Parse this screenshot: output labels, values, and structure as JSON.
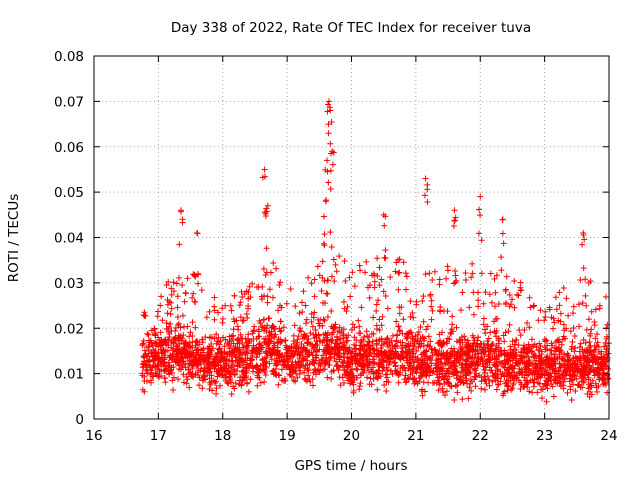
{
  "chart_data": {
    "type": "scatter",
    "title": "Day 338 of 2022, Rate Of TEC Index for receiver tuva",
    "xlabel": "GPS time / hours",
    "ylabel": "ROTI / TECUs",
    "xlim": [
      16,
      24
    ],
    "ylim": [
      0,
      0.08
    ],
    "x_ticks": [
      "16",
      "17",
      "18",
      "19",
      "20",
      "21",
      "22",
      "23",
      "24"
    ],
    "y_ticks": [
      "0",
      "0.01",
      "0.02",
      "0.03",
      "0.04",
      "0.05",
      "0.06",
      "0.07",
      "0.08"
    ],
    "grid": true,
    "marker": "+",
    "colors": {
      "series": "#ff0000",
      "grid": "#a0a0a0",
      "axis": "#000000"
    },
    "series": [
      {
        "name": "ROTI",
        "notable_points": [
          {
            "x": 17.35,
            "y": 0.046
          },
          {
            "x": 17.6,
            "y": 0.041
          },
          {
            "x": 18.65,
            "y": 0.055
          },
          {
            "x": 18.7,
            "y": 0.047
          },
          {
            "x": 19.65,
            "y": 0.07
          },
          {
            "x": 19.67,
            "y": 0.068
          },
          {
            "x": 19.7,
            "y": 0.059
          },
          {
            "x": 19.62,
            "y": 0.057
          },
          {
            "x": 19.6,
            "y": 0.048
          },
          {
            "x": 20.5,
            "y": 0.045
          },
          {
            "x": 21.15,
            "y": 0.053
          },
          {
            "x": 21.6,
            "y": 0.046
          },
          {
            "x": 22.0,
            "y": 0.049
          },
          {
            "x": 22.35,
            "y": 0.044
          },
          {
            "x": 23.6,
            "y": 0.041
          }
        ],
        "profile": [
          {
            "x": 16.75,
            "base": 0.012,
            "spread": 0.012
          },
          {
            "x": 17.0,
            "base": 0.013,
            "spread": 0.013
          },
          {
            "x": 17.3,
            "base": 0.014,
            "spread": 0.022
          },
          {
            "x": 17.6,
            "base": 0.013,
            "spread": 0.02
          },
          {
            "x": 18.0,
            "base": 0.012,
            "spread": 0.014
          },
          {
            "x": 18.4,
            "base": 0.013,
            "spread": 0.016
          },
          {
            "x": 18.7,
            "base": 0.015,
            "spread": 0.024
          },
          {
            "x": 19.0,
            "base": 0.013,
            "spread": 0.015
          },
          {
            "x": 19.4,
            "base": 0.014,
            "spread": 0.02
          },
          {
            "x": 19.7,
            "base": 0.016,
            "spread": 0.026
          },
          {
            "x": 20.0,
            "base": 0.013,
            "spread": 0.02
          },
          {
            "x": 20.5,
            "base": 0.014,
            "spread": 0.024
          },
          {
            "x": 21.0,
            "base": 0.013,
            "spread": 0.02
          },
          {
            "x": 21.5,
            "base": 0.012,
            "spread": 0.022
          },
          {
            "x": 22.0,
            "base": 0.013,
            "spread": 0.022
          },
          {
            "x": 22.5,
            "base": 0.012,
            "spread": 0.02
          },
          {
            "x": 23.0,
            "base": 0.011,
            "spread": 0.014
          },
          {
            "x": 23.5,
            "base": 0.012,
            "spread": 0.02
          },
          {
            "x": 24.0,
            "base": 0.011,
            "spread": 0.018
          }
        ]
      }
    ]
  }
}
